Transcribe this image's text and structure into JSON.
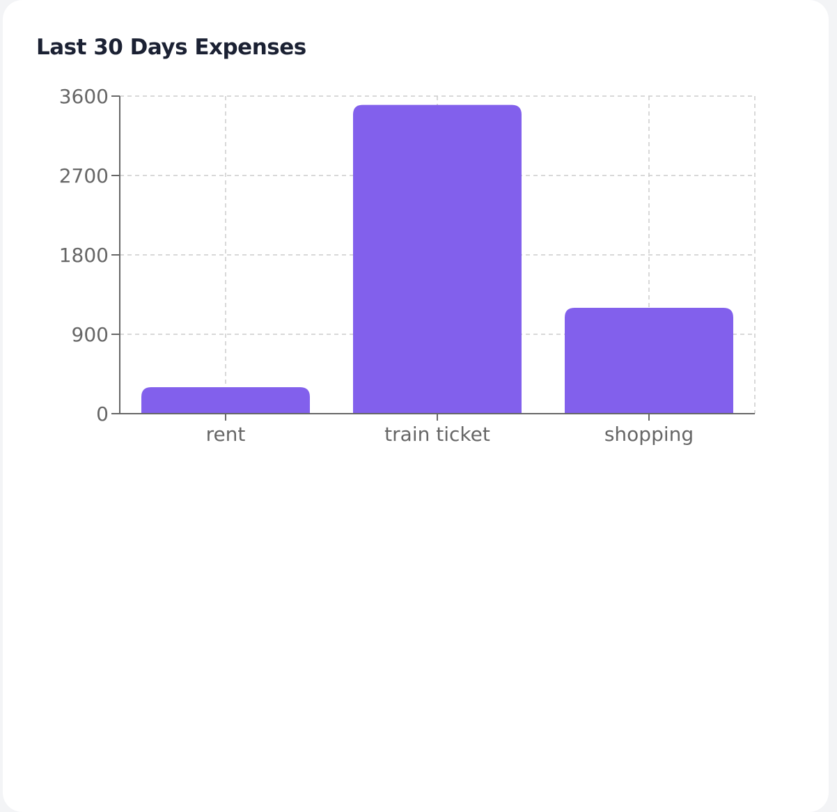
{
  "card": {
    "title": "Last 30 Days Expenses"
  },
  "chart_data": {
    "type": "bar",
    "categories": [
      "rent",
      "train ticket",
      "shopping"
    ],
    "values": [
      300,
      3500,
      1200
    ],
    "title": "Last 30 Days Expenses",
    "xlabel": "",
    "ylabel": "",
    "ylim": [
      0,
      3600
    ],
    "yticks": [
      0,
      900,
      1800,
      2700,
      3600
    ],
    "ytick_labels": [
      "0",
      "900",
      "1800",
      "2700",
      "3600"
    ],
    "grid": true,
    "bar_color": "#8260ec",
    "axis_color": "#666666",
    "grid_color": "#cccccc"
  }
}
